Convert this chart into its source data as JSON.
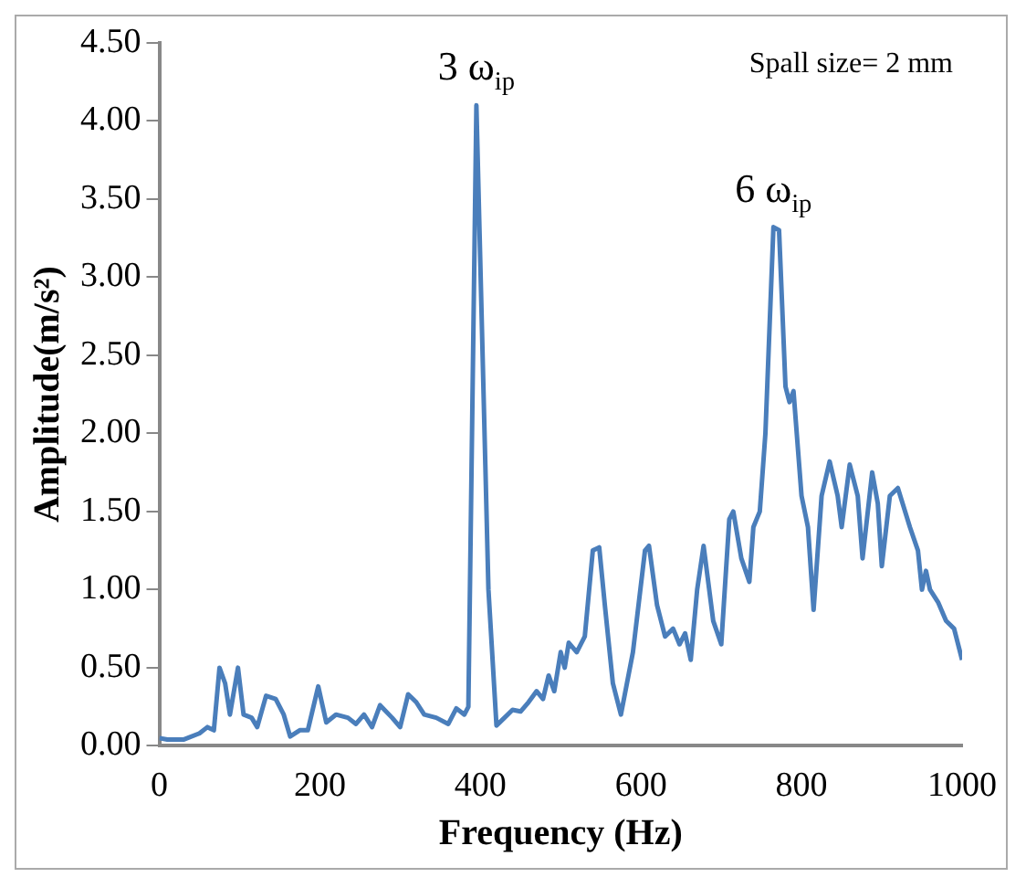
{
  "chart_data": {
    "type": "line",
    "xlabel": "Frequency (Hz)",
    "ylabel": "Amplitude(m/s²)",
    "annotations": [
      {
        "text": "3 ω$_{ip}$",
        "x": 395,
        "y": 4.1
      },
      {
        "text": "6 ω$_{ip}$",
        "x": 765,
        "y": 3.32
      },
      "Spall size= 2 mm"
    ],
    "xlim": [
      0,
      1000
    ],
    "xticks": [
      0,
      200,
      400,
      600,
      800,
      1000
    ],
    "ylim": [
      0,
      4.5
    ],
    "yticks": [
      {
        "value": 0,
        "label": "0.00"
      },
      {
        "value": 0.5,
        "label": "0.50"
      },
      {
        "value": 1,
        "label": "1.00"
      },
      {
        "value": 1.5,
        "label": "1.50"
      },
      {
        "value": 2,
        "label": "2.00"
      },
      {
        "value": 2.5,
        "label": "2.50"
      },
      {
        "value": 3,
        "label": "3.00"
      },
      {
        "value": 3.5,
        "label": "3.50"
      },
      {
        "value": 4,
        "label": "4.00"
      },
      {
        "value": 4.5,
        "label": "4.50"
      }
    ],
    "grid": false,
    "legend": false,
    "marker": "none",
    "line_style": "solid",
    "x": [
      0,
      10,
      30,
      50,
      60,
      68,
      75,
      82,
      88,
      98,
      105,
      115,
      122,
      133,
      145,
      155,
      163,
      175,
      185,
      198,
      208,
      220,
      235,
      245,
      255,
      265,
      275,
      290,
      300,
      310,
      320,
      330,
      345,
      360,
      370,
      380,
      385,
      395,
      410,
      420,
      430,
      440,
      450,
      460,
      470,
      478,
      485,
      492,
      500,
      505,
      510,
      520,
      530,
      540,
      548,
      555,
      565,
      575,
      590,
      605,
      610,
      620,
      630,
      640,
      648,
      655,
      662,
      670,
      678,
      690,
      700,
      710,
      715,
      725,
      735,
      740,
      748,
      755,
      765,
      772,
      780,
      785,
      790,
      800,
      808,
      815,
      825,
      835,
      845,
      850,
      860,
      870,
      876,
      888,
      895,
      900,
      910,
      920,
      935,
      945,
      950,
      955,
      960,
      970,
      980,
      990,
      1000
    ],
    "series": [
      {
        "color": "#4a7ebb",
        "values": [
          0.05,
          0.04,
          0.04,
          0.08,
          0.12,
          0.1,
          0.5,
          0.4,
          0.2,
          0.5,
          0.2,
          0.18,
          0.12,
          0.32,
          0.3,
          0.2,
          0.06,
          0.1,
          0.1,
          0.38,
          0.15,
          0.2,
          0.18,
          0.14,
          0.2,
          0.12,
          0.26,
          0.18,
          0.12,
          0.33,
          0.28,
          0.2,
          0.18,
          0.14,
          0.24,
          0.2,
          0.25,
          4.1,
          1.0,
          0.13,
          0.18,
          0.23,
          0.22,
          0.28,
          0.35,
          0.3,
          0.45,
          0.35,
          0.6,
          0.5,
          0.66,
          0.6,
          0.7,
          1.25,
          1.27,
          0.9,
          0.4,
          0.2,
          0.6,
          1.25,
          1.28,
          0.9,
          0.7,
          0.75,
          0.65,
          0.72,
          0.55,
          1.0,
          1.28,
          0.8,
          0.65,
          1.45,
          1.5,
          1.2,
          1.05,
          1.4,
          1.5,
          2.0,
          3.32,
          3.3,
          2.3,
          2.2,
          2.27,
          1.6,
          1.4,
          0.87,
          1.6,
          1.82,
          1.6,
          1.4,
          1.8,
          1.6,
          1.2,
          1.75,
          1.55,
          1.15,
          1.6,
          1.65,
          1.4,
          1.25,
          1.0,
          1.12,
          1.0,
          0.92,
          0.8,
          0.75,
          0.55
        ]
      }
    ]
  }
}
